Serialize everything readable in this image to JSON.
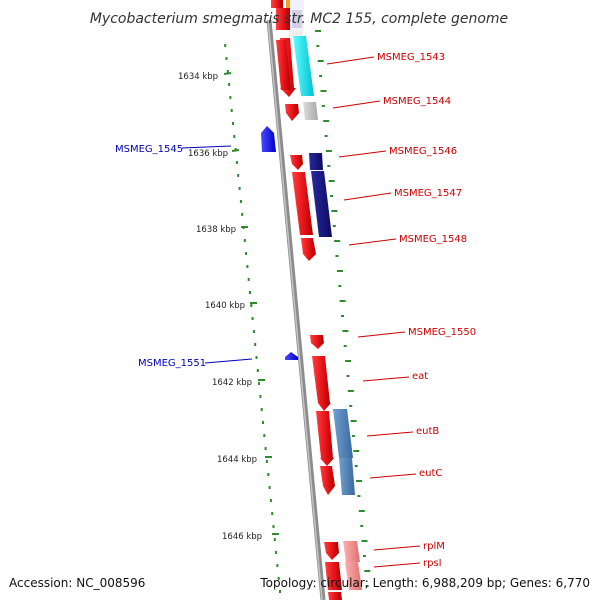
{
  "title": "Mycobacterium smegmatis str. MC2 155, complete genome",
  "footer": {
    "accession": "Accession: NC_008596",
    "topology": "Topology: circular; Length: 6,988,209 bp; Genes: 6,770"
  },
  "colors": {
    "backbone": "#8c8c8c",
    "ruler": "#2e8b2e",
    "forward_gene": "#e8161b",
    "reverse_gene": "#1a1aff",
    "forward_label": "#cc0000",
    "reverse_label": "#0000bb",
    "cog_cyan": "#00e6e6",
    "cog_grey": "#bdbdbd",
    "cog_navy": "#141480",
    "cog_steelblue": "#4a80b8",
    "cog_pink": "#f08a8a",
    "cog_orange": "#f0a020"
  },
  "ruler_ticks": [
    "1634 kbp",
    "1636 kbp",
    "1638 kbp",
    "1640 kbp",
    "1642 kbp",
    "1644 kbp",
    "1646 kbp"
  ],
  "forward_labels": [
    "MSMEG_1543",
    "MSMEG_1544",
    "MSMEG_1546",
    "MSMEG_1547",
    "MSMEG_1548",
    "MSMEG_1550",
    "eat",
    "eutB",
    "eutC",
    "rplM",
    "rpsI"
  ],
  "reverse_labels": [
    "MSMEG_1545",
    "MSMEG_1551"
  ]
}
